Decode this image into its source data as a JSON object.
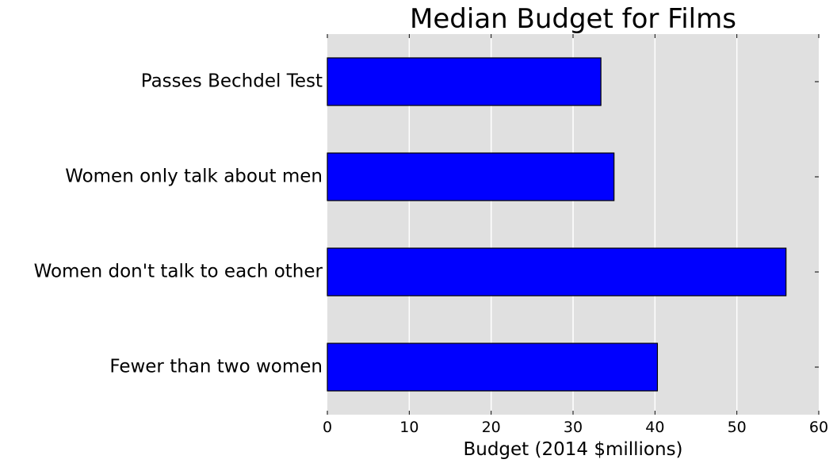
{
  "chart_data": {
    "type": "bar",
    "orientation": "horizontal",
    "title": "Median Budget for Films",
    "xlabel": "Budget (2014 $millions)",
    "ylabel": "",
    "categories": [
      "Passes Bechdel Test",
      "Women only talk about men",
      "Women don't talk to each other",
      "Fewer than two women"
    ],
    "values": [
      33.4,
      35.0,
      56.0,
      40.3
    ],
    "xlim": [
      0,
      60
    ],
    "xticks": [
      0,
      10,
      20,
      30,
      40,
      50,
      60
    ],
    "grid": "vertical",
    "legend": "none",
    "colors": {
      "bar": "#0000ff",
      "bar_edge": "#000000",
      "plot_background": "#e0e0e0",
      "grid": "#ffffff"
    }
  }
}
